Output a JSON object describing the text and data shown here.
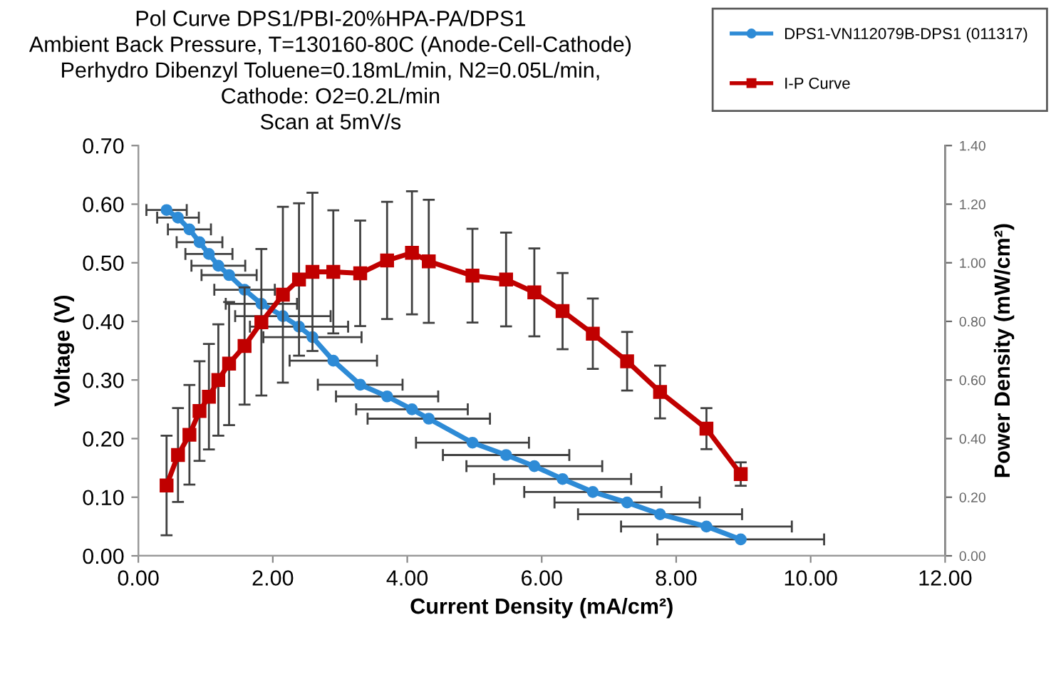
{
  "chart_data": {
    "type": "line",
    "title": "Pol Curve DPS1/PBI-20%HPA-PA/DPS1\nAmbient Back Pressure, T=130160-80C (Anode-Cell-Cathode)\nPerhydro Dibenzyl Toluene=0.18mL/min, N2=0.05L/min,\nCathode: O2=0.2L/min\nScan at 5mV/s",
    "xlabel": "Current Density (mA/cm²)",
    "ylabel": "Voltage (V)",
    "y2label": "Power Density (mW/cm²)",
    "x": [
      0.42,
      0.59,
      0.76,
      0.91,
      1.05,
      1.19,
      1.35,
      1.58,
      1.83,
      2.15,
      2.39,
      2.59,
      2.9,
      3.3,
      3.7,
      4.07,
      4.32,
      4.97,
      5.47,
      5.89,
      6.31,
      6.76,
      7.27,
      7.76,
      8.45,
      8.96
    ],
    "series": [
      {
        "name": "DPS1-VN112079B-DPS1 (011317)",
        "color": "#2e8bd6",
        "marker": "circle",
        "values": [
          0.59,
          0.577,
          0.557,
          0.535,
          0.515,
          0.495,
          0.479,
          0.454,
          0.43,
          0.409,
          0.391,
          0.373,
          0.333,
          0.292,
          0.272,
          0.25,
          0.234,
          0.193,
          0.172,
          0.153,
          0.131,
          0.109,
          0.091,
          0.071,
          0.05,
          0.028
        ],
        "xerrors": [
          0.3,
          0.31,
          0.32,
          0.34,
          0.35,
          0.4,
          0.41,
          0.45,
          0.53,
          0.71,
          0.73,
          0.73,
          0.65,
          0.63,
          0.76,
          0.83,
          0.91,
          0.84,
          0.94,
          1.01,
          1.02,
          1.02,
          1.08,
          1.22,
          1.27,
          1.24
        ]
      },
      {
        "name": "I-P Curve",
        "color": "#c00000",
        "marker": "square",
        "axis": "y2",
        "values": [
          0.24,
          0.344,
          0.413,
          0.494,
          0.543,
          0.6,
          0.656,
          0.716,
          0.797,
          0.891,
          0.943,
          0.969,
          0.969,
          0.964,
          1.008,
          1.034,
          1.005,
          0.956,
          0.943,
          0.899,
          0.835,
          0.758,
          0.664,
          0.559,
          0.434,
          0.279
        ],
        "errors": [
          0.17,
          0.16,
          0.17,
          0.17,
          0.18,
          0.19,
          0.21,
          0.2,
          0.25,
          0.3,
          0.26,
          0.27,
          0.21,
          0.18,
          0.2,
          0.21,
          0.21,
          0.16,
          0.16,
          0.15,
          0.13,
          0.12,
          0.1,
          0.09,
          0.07,
          0.04
        ]
      }
    ],
    "xlim": [
      0,
      12
    ],
    "xticks": [
      {
        "value": 0,
        "label": "0.00"
      },
      {
        "value": 2,
        "label": "2.00"
      },
      {
        "value": 4,
        "label": "4.00"
      },
      {
        "value": 6,
        "label": "6.00"
      },
      {
        "value": 8,
        "label": "8.00"
      },
      {
        "value": 10,
        "label": "10.00"
      },
      {
        "value": 12,
        "label": "12.00"
      }
    ],
    "ylim": [
      0,
      0.7
    ],
    "yticks": [
      {
        "value": 0,
        "label": "0.00"
      },
      {
        "value": 0.1,
        "label": "0.10"
      },
      {
        "value": 0.2,
        "label": "0.20"
      },
      {
        "value": 0.3,
        "label": "0.30"
      },
      {
        "value": 0.4,
        "label": "0.40"
      },
      {
        "value": 0.5,
        "label": "0.50"
      },
      {
        "value": 0.6,
        "label": "0.60"
      },
      {
        "value": 0.7,
        "label": "0.70"
      }
    ],
    "y2lim": [
      0,
      1.4
    ],
    "y2ticks": [
      {
        "value": 0,
        "label": "0.00"
      },
      {
        "value": 0.2,
        "label": "0.20"
      },
      {
        "value": 0.4,
        "label": "0.40"
      },
      {
        "value": 0.6,
        "label": "0.60"
      },
      {
        "value": 0.8,
        "label": "0.80"
      },
      {
        "value": 1.0,
        "label": "1.00"
      },
      {
        "value": 1.2,
        "label": "1.20"
      },
      {
        "value": 1.4,
        "label": "1.40"
      }
    ],
    "legend": "top right",
    "line_style": "solid"
  }
}
